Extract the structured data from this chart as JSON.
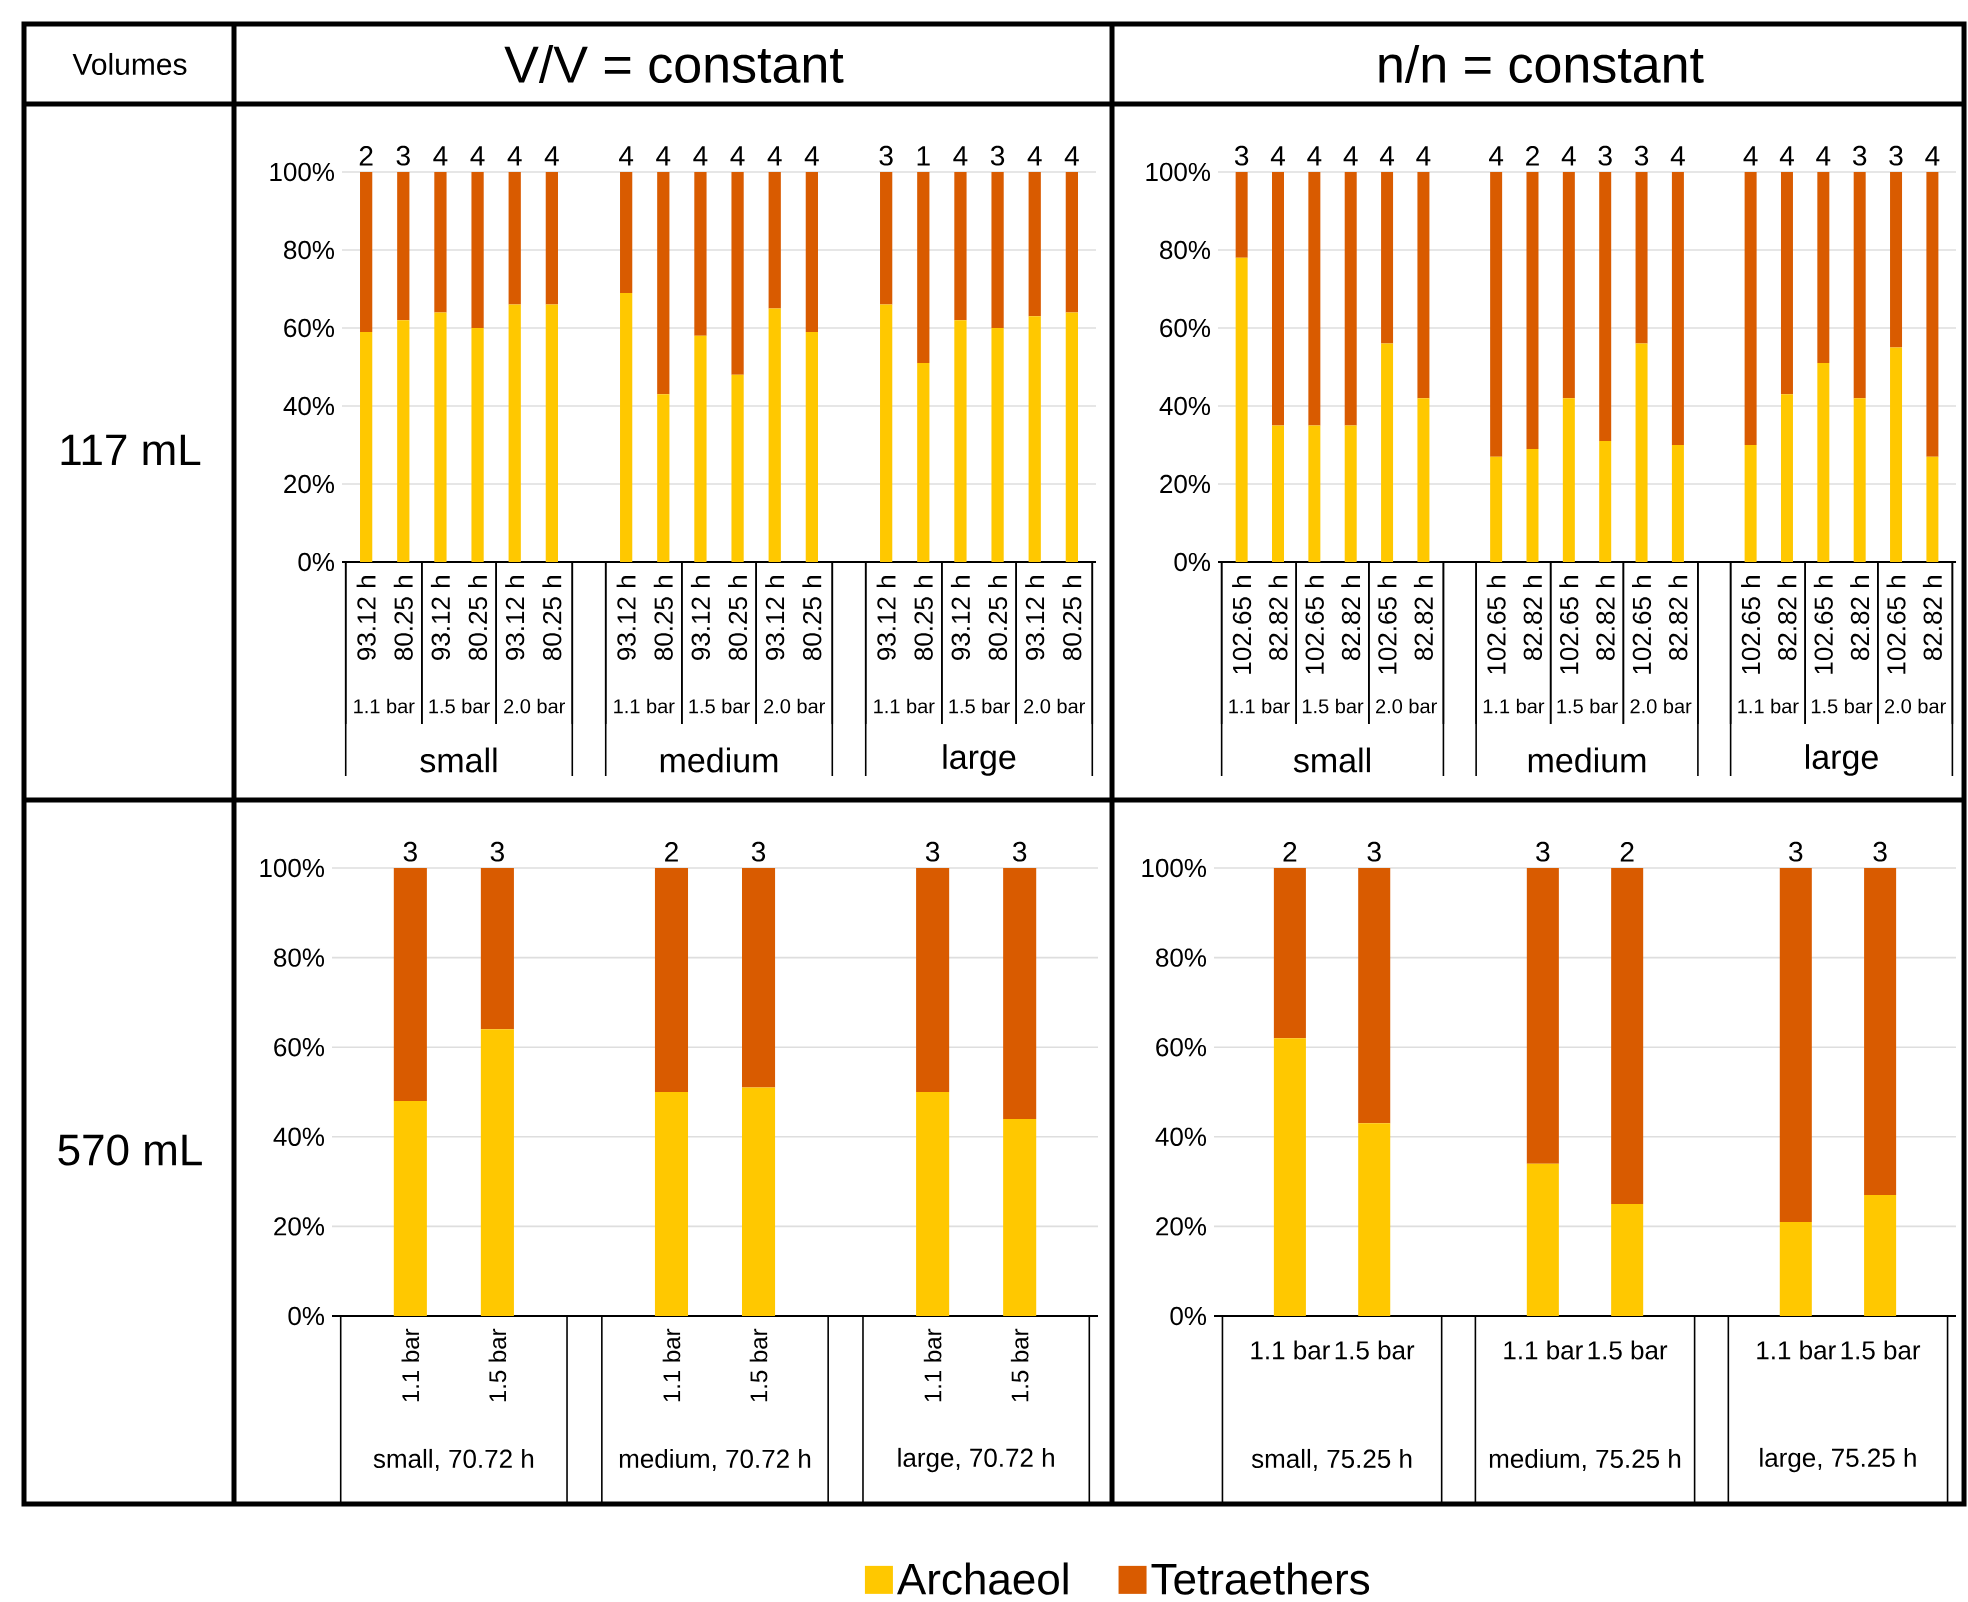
{
  "chart_data": [
    {
      "type": "bar",
      "stacked": true,
      "grid": "y",
      "ylim": [
        0,
        100
      ],
      "yticks": [
        {
          "value": 0,
          "label": "0%"
        },
        {
          "value": 20,
          "label": "20%"
        },
        {
          "value": 40,
          "label": "40%"
        },
        {
          "value": 60,
          "label": "60%"
        },
        {
          "value": 80,
          "label": "80%"
        },
        {
          "value": 100,
          "label": "100%"
        }
      ],
      "categories": [
        "93.12 h",
        "80.25 h",
        "93.12 h",
        "80.25 h",
        "93.12 h",
        "80.25 h",
        "93.12 h",
        "80.25 h",
        "93.12 h",
        "80.25 h",
        "93.12 h",
        "80.25 h",
        "93.12 h",
        "80.25 h",
        "93.12 h",
        "80.25 h",
        "93.12 h",
        "80.25 h"
      ],
      "annotations": [
        "2",
        "3",
        "4",
        "4",
        "4",
        "4",
        "4",
        "4",
        "4",
        "4",
        "4",
        "4",
        "3",
        "1",
        "4",
        "3",
        "4",
        "4",
        "1.1 bar",
        "1.5 bar",
        "2.0 bar",
        "1.1 bar",
        "1.5 bar",
        "2.0 bar",
        "1.1 bar",
        "1.5 bar",
        "2.0 bar",
        "small",
        "medium",
        "large"
      ],
      "series": [
        {
          "color": "#ffc800",
          "values": [
            59,
            62,
            64,
            60,
            66,
            66,
            69,
            43,
            58,
            48,
            65,
            59,
            66,
            51,
            62,
            60,
            63,
            64
          ]
        },
        {
          "color": "#d95b00",
          "values": [
            41,
            38,
            36,
            40,
            34,
            34,
            31,
            57,
            42,
            52,
            35,
            41,
            34,
            49,
            38,
            40,
            37,
            36
          ]
        }
      ]
    },
    {
      "type": "bar",
      "stacked": true,
      "grid": "y",
      "ylim": [
        0,
        100
      ],
      "yticks": [
        {
          "value": 0,
          "label": "0%"
        },
        {
          "value": 20,
          "label": "20%"
        },
        {
          "value": 40,
          "label": "40%"
        },
        {
          "value": 60,
          "label": "60%"
        },
        {
          "value": 80,
          "label": "80%"
        },
        {
          "value": 100,
          "label": "100%"
        }
      ],
      "categories": [
        "102.65 h",
        "82.82 h",
        "102.65 h",
        "82.82 h",
        "102.65 h",
        "82.82 h",
        "102.65 h",
        "82.82 h",
        "102.65 h",
        "82.82 h",
        "102.65 h",
        "82.82 h",
        "102.65 h",
        "82.82 h",
        "102.65 h",
        "82.82 h",
        "102.65 h",
        "82.82 h"
      ],
      "annotations": [
        "3",
        "4",
        "4",
        "4",
        "4",
        "4",
        "4",
        "2",
        "4",
        "3",
        "3",
        "4",
        "4",
        "4",
        "4",
        "3",
        "3",
        "4",
        "1.1 bar",
        "1.5 bar",
        "2.0 bar",
        "1.1 bar",
        "1.5 bar",
        "2.0 bar",
        "1.1 bar",
        "1.5 bar",
        "2.0 bar",
        "small",
        "medium",
        "large"
      ],
      "series": [
        {
          "color": "#ffc800",
          "values": [
            78,
            35,
            35,
            35,
            56,
            42,
            27,
            29,
            42,
            31,
            56,
            30,
            30,
            43,
            51,
            42,
            55,
            27
          ]
        },
        {
          "color": "#d95b00",
          "values": [
            22,
            65,
            65,
            65,
            44,
            58,
            73,
            71,
            58,
            69,
            44,
            70,
            70,
            57,
            49,
            58,
            45,
            73
          ]
        }
      ]
    },
    {
      "type": "bar",
      "stacked": true,
      "grid": "y",
      "ylim": [
        0,
        100
      ],
      "yticks": [
        {
          "value": 0,
          "label": "0%"
        },
        {
          "value": 20,
          "label": "20%"
        },
        {
          "value": 40,
          "label": "40%"
        },
        {
          "value": 60,
          "label": "60%"
        },
        {
          "value": 80,
          "label": "80%"
        },
        {
          "value": 100,
          "label": "100%"
        }
      ],
      "categories": [
        "1.1 bar",
        "1.5 bar",
        "1.1 bar",
        "1.5 bar",
        "1.1 bar",
        "1.5 bar"
      ],
      "annotations": [
        "3",
        "3",
        "2",
        "3",
        "3",
        "3",
        "small, 70.72 h",
        "medium, 70.72 h",
        "large, 70.72 h"
      ],
      "series": [
        {
          "color": "#ffc800",
          "values": [
            48,
            64,
            50,
            51,
            50,
            44
          ]
        },
        {
          "color": "#d95b00",
          "values": [
            52,
            36,
            50,
            49,
            50,
            56
          ]
        }
      ]
    },
    {
      "type": "bar",
      "stacked": true,
      "grid": "y",
      "ylim": [
        0,
        100
      ],
      "legend": "bottom",
      "yticks": [
        {
          "value": 0,
          "label": "0%"
        },
        {
          "value": 20,
          "label": "20%"
        },
        {
          "value": 40,
          "label": "40%"
        },
        {
          "value": 60,
          "label": "60%"
        },
        {
          "value": 80,
          "label": "80%"
        },
        {
          "value": 100,
          "label": "100%"
        }
      ],
      "categories": [
        "1.1 bar",
        "1.5 bar",
        "1.1 bar",
        "1.5 bar",
        "1.1 bar",
        "1.5 bar"
      ],
      "annotations": [
        "2",
        "3",
        "3",
        "2",
        "3",
        "3",
        "small, 75.25 h",
        "medium, 75.25 h",
        "large, 75.25 h"
      ],
      "series": [
        {
          "name": "Archaeol",
          "color": "#ffc800",
          "values": [
            62,
            43,
            34,
            25,
            21,
            27
          ]
        },
        {
          "name": "Tetraethers",
          "color": "#d95b00",
          "values": [
            38,
            57,
            66,
            75,
            79,
            73
          ]
        }
      ]
    },
    {
      "type": "other",
      "annotations": [
        "Volumes",
        "V/V = constant",
        "n/n = constant",
        "117 mL",
        "570 mL"
      ]
    }
  ]
}
